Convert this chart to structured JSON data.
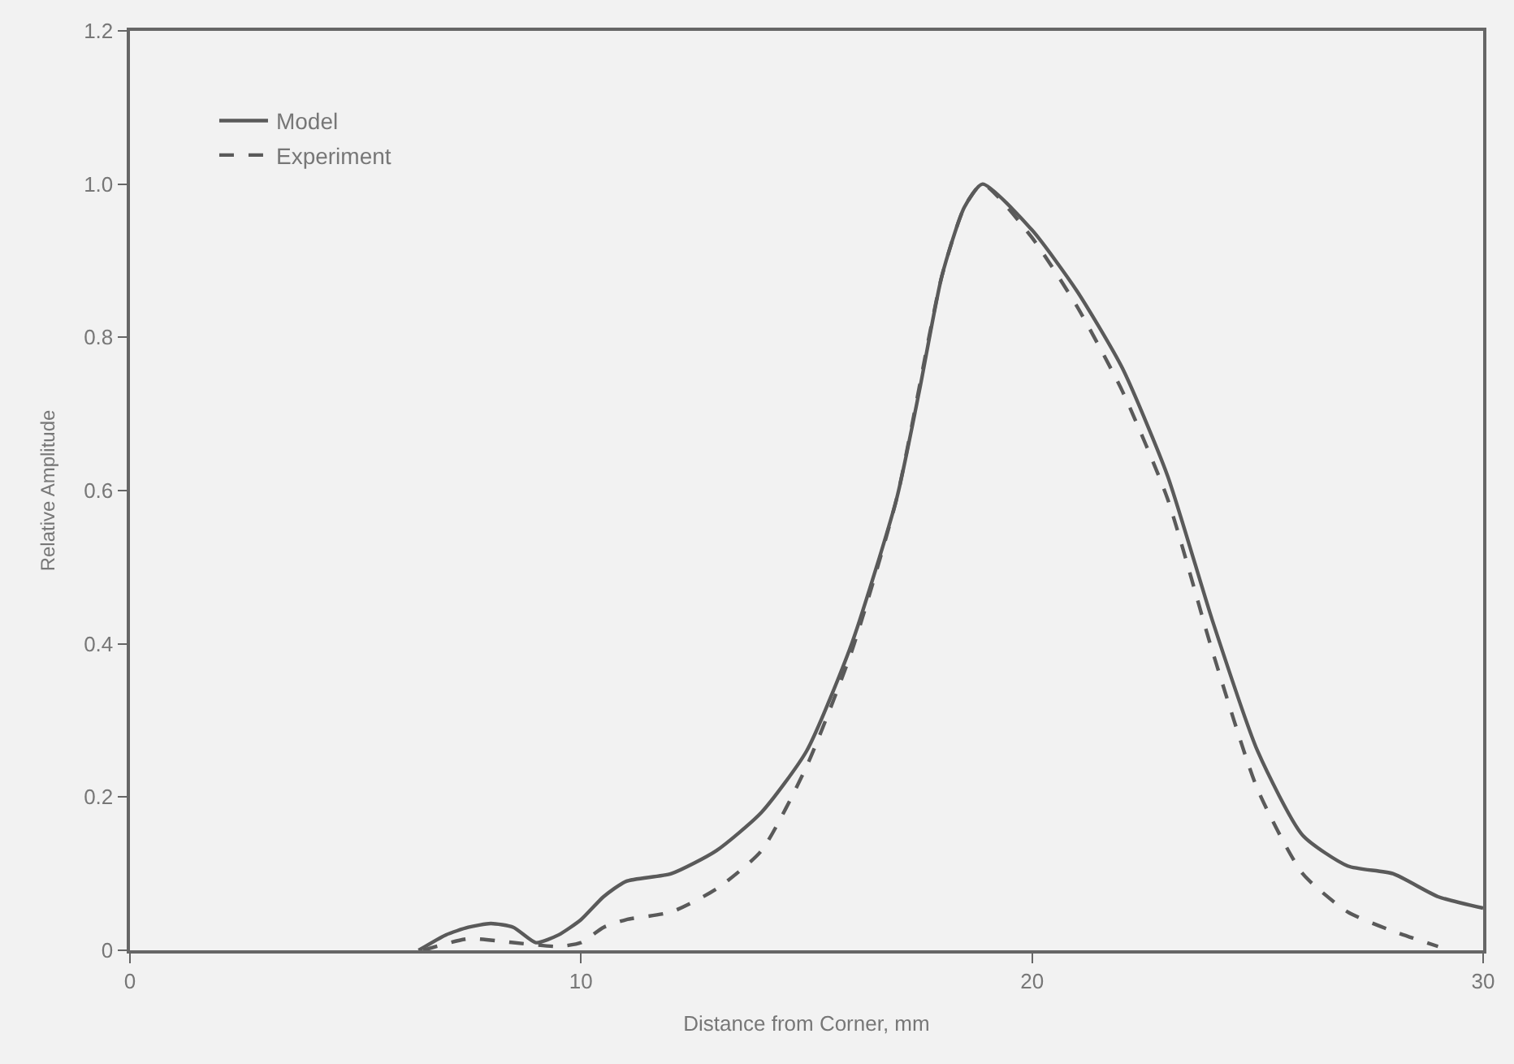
{
  "chart_data": {
    "type": "line",
    "xlabel": "Distance from Corner, mm",
    "ylabel": "Relative Amplitude",
    "xlim": [
      0,
      30
    ],
    "xticks": [
      0,
      10,
      20,
      30
    ],
    "ylim": [
      0,
      1.2
    ],
    "yticks": [
      {
        "value": 0,
        "label": "0"
      },
      {
        "value": 0.2,
        "label": "0.2"
      },
      {
        "value": 0.4,
        "label": "0.4"
      },
      {
        "value": 0.6,
        "label": "0.6"
      },
      {
        "value": 0.8,
        "label": "0.8"
      },
      {
        "value": 1.0,
        "label": "1.0"
      },
      {
        "value": 1.2,
        "label": "1.2"
      }
    ],
    "grid": false,
    "legend": "top left",
    "marker": "none",
    "series": [
      {
        "name": "Model",
        "color": "#5a5a5a",
        "line_style": "solid",
        "x": [
          6.4,
          7.0,
          7.5,
          8.0,
          8.5,
          9.0,
          9.5,
          10.0,
          10.5,
          11.0,
          12.0,
          13.0,
          14.0,
          15.0,
          16.0,
          17.0,
          17.5,
          18.0,
          18.5,
          18.9,
          20.0,
          21.0,
          22.0,
          23.0,
          24.0,
          25.0,
          26.0,
          27.0,
          28.0,
          29.0,
          30.0
        ],
        "values": [
          0,
          0.02,
          0.03,
          0.035,
          0.03,
          0.01,
          0.02,
          0.04,
          0.07,
          0.09,
          0.1,
          0.13,
          0.18,
          0.26,
          0.4,
          0.59,
          0.73,
          0.88,
          0.97,
          1.0,
          0.94,
          0.86,
          0.76,
          0.62,
          0.43,
          0.26,
          0.15,
          0.11,
          0.1,
          0.07,
          0.055
        ]
      },
      {
        "name": "Experiment",
        "color": "#5a5a5a",
        "line_style": "dashed",
        "x": [
          6.5,
          7.5,
          8.5,
          9.5,
          10.0,
          10.5,
          11.0,
          12.0,
          13.0,
          14.0,
          15.0,
          16.0,
          17.0,
          18.0,
          18.5,
          18.9,
          20.0,
          21.0,
          22.0,
          23.0,
          24.0,
          25.0,
          26.0,
          27.0,
          28.0,
          29.0
        ],
        "values": [
          0,
          0.015,
          0.01,
          0.005,
          0.01,
          0.03,
          0.04,
          0.05,
          0.08,
          0.13,
          0.24,
          0.39,
          0.59,
          0.88,
          0.97,
          1.0,
          0.93,
          0.84,
          0.73,
          0.59,
          0.39,
          0.21,
          0.1,
          0.05,
          0.025,
          0.005
        ]
      }
    ]
  }
}
